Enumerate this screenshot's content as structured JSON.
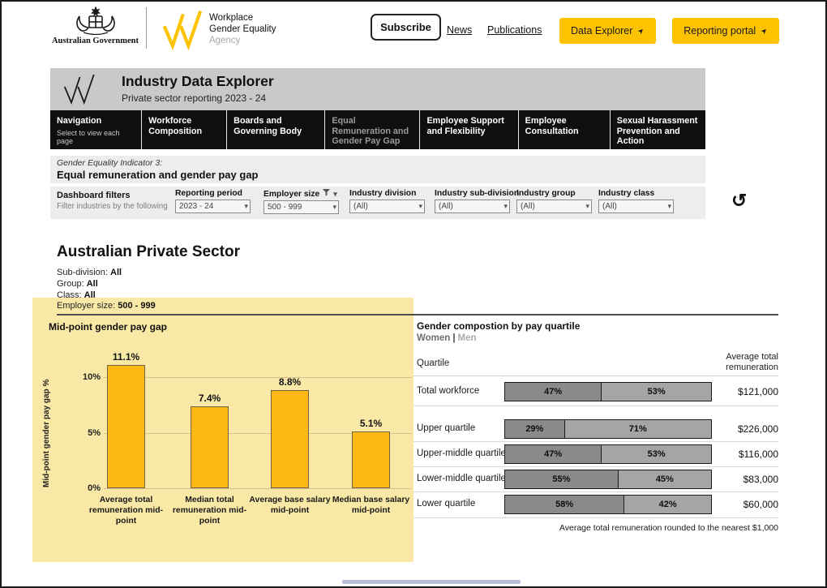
{
  "header": {
    "gov_label": "Australian Government",
    "agency": {
      "line1": "Workplace",
      "line2": "Gender Equality",
      "line3": "Agency"
    },
    "subscribe": "Subscribe",
    "news": "News",
    "publications": "Publications",
    "data_explorer": "Data Explorer",
    "reporting_portal": "Reporting portal",
    "external_arrow": "➤"
  },
  "banner": {
    "title": "Industry Data Explorer",
    "subtitle": "Private sector reporting 2023 - 24"
  },
  "nav": {
    "tabs": [
      {
        "label": "Navigation",
        "sublabel": "Select to view each page",
        "active": false
      },
      {
        "label": "Workforce Composition",
        "active": false
      },
      {
        "label": "Boards and Governing Body",
        "active": false
      },
      {
        "label": "Equal Remuneration and Gender Pay Gap",
        "active": true
      },
      {
        "label": "Employee Support and Flexibility",
        "active": false
      },
      {
        "label": "Employee Consultation",
        "active": false
      },
      {
        "label": "Sexual Harassment Prevention and Action",
        "active": false
      }
    ]
  },
  "indicator": {
    "eyebrow": "Gender Equality Indicator 3:",
    "title": "Equal remuneration and gender pay gap"
  },
  "filters": {
    "title": "Dashboard filters",
    "subtitle": "Filter industries by the following",
    "items": [
      {
        "label": "Reporting period",
        "value": "2023 - 24",
        "has_filter_icon": false
      },
      {
        "label": "Employer size",
        "value": "500 - 999",
        "has_filter_icon": true
      },
      {
        "label": "Industry division",
        "value": "(All)",
        "has_filter_icon": false
      },
      {
        "label": "Industry sub-division",
        "value": "(All)",
        "has_filter_icon": false
      },
      {
        "label": "Industry group",
        "value": "(All)",
        "has_filter_icon": false
      },
      {
        "label": "Industry class",
        "value": "(All)",
        "has_filter_icon": false
      }
    ]
  },
  "summary": {
    "title": "Australian Private Sector",
    "attributes": [
      {
        "label": "Sub-division:",
        "value": "All"
      },
      {
        "label": "Group:",
        "value": "All"
      },
      {
        "label": "Class:",
        "value": "All"
      },
      {
        "label": "Employer size:",
        "value": "500 - 999"
      }
    ]
  },
  "chart_data": [
    {
      "type": "bar",
      "title": "Mid-point gender pay gap",
      "ylabel": "Mid-point gender pay gap %",
      "categories": [
        "Average total remuneration mid-point",
        "Median total remuneration mid-point",
        "Average base salary mid-point",
        "Median base salary mid-point"
      ],
      "values": [
        11.1,
        7.4,
        8.8,
        5.1
      ],
      "data_labels": [
        "11.1%",
        "7.4%",
        "8.8%",
        "5.1%"
      ],
      "unit": "%",
      "yticks": [
        {
          "label": "0%",
          "value": 0
        },
        {
          "label": "5%",
          "value": 5
        },
        {
          "label": "10%",
          "value": 10
        }
      ],
      "ylim": [
        0,
        12
      ],
      "grid": true,
      "bar_color": "#FDB813",
      "background_highlight": "#FAE9A6"
    },
    {
      "type": "table",
      "title": "Gender compostion by pay quartile",
      "legend": [
        "Women",
        "Men"
      ],
      "legend_separator": "|",
      "columns": [
        "Quartile",
        "Average total remuneration"
      ],
      "rows": [
        {
          "label": "Total workforce",
          "women_pct": 47,
          "men_pct": 53,
          "women_label": "47%",
          "men_label": "53%",
          "remuneration": "$121,000"
        },
        {
          "label": "Upper quartile",
          "women_pct": 29,
          "men_pct": 71,
          "women_label": "29%",
          "men_label": "71%",
          "remuneration": "$226,000"
        },
        {
          "label": "Upper-middle quartile",
          "women_pct": 47,
          "men_pct": 53,
          "women_label": "47%",
          "men_label": "53%",
          "remuneration": "$116,000"
        },
        {
          "label": "Lower-middle quartile",
          "women_pct": 55,
          "men_pct": 45,
          "women_label": "55%",
          "men_label": "45%",
          "remuneration": "$83,000"
        },
        {
          "label": "Lower quartile",
          "women_pct": 58,
          "men_pct": 42,
          "women_label": "58%",
          "men_label": "42%",
          "remuneration": "$60,000"
        }
      ],
      "footnote": "Average total remuneration rounded to the nearest $1,000"
    }
  ],
  "colors": {
    "accent_yellow": "#FDC300",
    "bar_yellow": "#FDB813",
    "highlight_yellow": "#FAE9A6",
    "women_gray": "#8A8A8A",
    "men_gray": "#A5A5A5",
    "nav_black": "#0F0F0F",
    "banner_gray": "#C9C9C9",
    "strip_gray": "#EDEDED"
  }
}
